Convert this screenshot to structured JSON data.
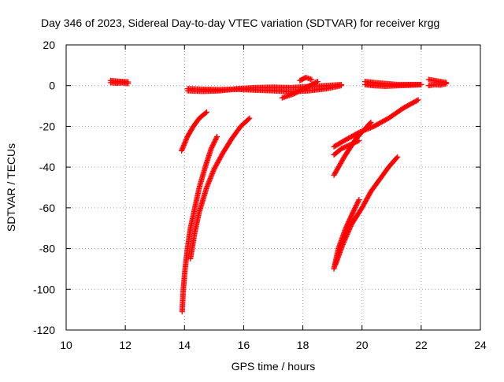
{
  "chart_data": {
    "type": "scatter",
    "title": "Day 346 of 2023, Sidereal Day-to-day VTEC variation (SDTVAR) for receiver krgg",
    "xlabel": "GPS time / hours",
    "ylabel": "SDTVAR / TECUs",
    "xlim": [
      10,
      24
    ],
    "ylim": [
      -120,
      20
    ],
    "xticks": [
      10,
      12,
      14,
      16,
      18,
      20,
      22,
      24
    ],
    "yticks": [
      -120,
      -100,
      -80,
      -60,
      -40,
      -20,
      0,
      20
    ],
    "grid": true,
    "marker": "+",
    "color": "#ff0000",
    "tracks": [
      {
        "x": [
          11.5,
          11.7,
          11.9,
          12.1
        ],
        "y": [
          2.5,
          2.2,
          2.0,
          1.8
        ]
      },
      {
        "x": [
          11.5,
          11.7,
          11.9,
          12.1
        ],
        "y": [
          1.5,
          1.2,
          1.4,
          1.0
        ]
      },
      {
        "x": [
          14.1,
          14.6,
          15.2,
          15.8,
          16.4,
          17.0,
          17.6,
          18.2,
          18.8,
          19.3
        ],
        "y": [
          -1.5,
          -1.8,
          -2.0,
          -1.8,
          -2.2,
          -2.5,
          -3.0,
          -2.5,
          -1.5,
          0.0
        ]
      },
      {
        "x": [
          14.1,
          14.6,
          15.2,
          15.8,
          16.4,
          17.0,
          17.6,
          18.2,
          18.8,
          19.3
        ],
        "y": [
          -2.5,
          -2.8,
          -2.5,
          -1.5,
          -1.0,
          -0.8,
          -1.0,
          -0.5,
          0.0,
          0.5
        ]
      },
      {
        "x": [
          17.3,
          17.7,
          18.1,
          18.5
        ],
        "y": [
          -6.0,
          -4.0,
          -1.0,
          2.0
        ]
      },
      {
        "x": [
          17.9,
          18.1,
          18.3
        ],
        "y": [
          2.5,
          4.0,
          3.0
        ]
      },
      {
        "x": [
          13.9,
          14.1,
          14.3,
          14.5,
          14.75
        ],
        "y": [
          -32,
          -25,
          -20,
          -16,
          -13
        ]
      },
      {
        "x": [
          13.92,
          13.96,
          14.02,
          14.1,
          14.2,
          14.35,
          14.5,
          14.7,
          14.9,
          15.1
        ],
        "y": [
          -111,
          -100,
          -90,
          -80,
          -70,
          -60,
          -50,
          -40,
          -31,
          -25
        ]
      },
      {
        "x": [
          14.2,
          14.35,
          14.5,
          14.75,
          15.0,
          15.3,
          15.6,
          15.9,
          16.2
        ],
        "y": [
          -85,
          -72,
          -62,
          -50,
          -41,
          -33,
          -26,
          -20,
          -16
        ]
      },
      {
        "x": [
          19.05,
          19.2,
          19.45,
          19.7,
          19.9
        ],
        "y": [
          -90,
          -80,
          -70,
          -62,
          -56
        ]
      },
      {
        "x": [
          19.1,
          19.35,
          19.65,
          20.0,
          20.3,
          20.6,
          20.9,
          21.2
        ],
        "y": [
          -88,
          -78,
          -68,
          -60,
          -52,
          -46,
          -40,
          -35
        ]
      },
      {
        "x": [
          19.05,
          19.4,
          19.8,
          20.3
        ],
        "y": [
          -44,
          -35,
          -26,
          -18
        ]
      },
      {
        "x": [
          19.05,
          19.3,
          19.6,
          19.9
        ],
        "y": [
          -34,
          -31,
          -29,
          -27
        ]
      },
      {
        "x": [
          19.05,
          19.4,
          19.9,
          20.4,
          20.9,
          21.4,
          21.9
        ],
        "y": [
          -30,
          -27,
          -23,
          -20,
          -16,
          -11,
          -7
        ]
      },
      {
        "x": [
          20.1,
          20.4,
          20.8,
          21.2,
          21.6,
          22.0
        ],
        "y": [
          2.0,
          1.5,
          1.0,
          0.5,
          0.5,
          0.5
        ]
      },
      {
        "x": [
          20.1,
          20.4,
          20.8,
          21.2,
          21.6,
          22.0
        ],
        "y": [
          0.5,
          0.0,
          -0.3,
          0.0,
          0.2,
          0.5
        ]
      },
      {
        "x": [
          22.25,
          22.45,
          22.65,
          22.85
        ],
        "y": [
          3.0,
          2.5,
          2.0,
          1.5
        ]
      },
      {
        "x": [
          22.25,
          22.45,
          22.65,
          22.85
        ],
        "y": [
          0.0,
          0.5,
          0.3,
          1.0
        ]
      }
    ]
  }
}
